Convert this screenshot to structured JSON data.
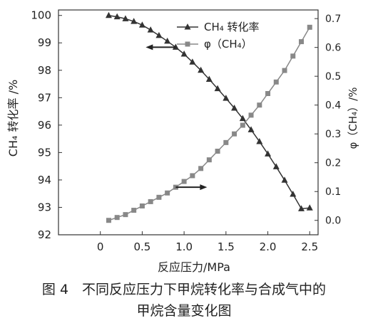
{
  "chart_data": {
    "type": "line",
    "x": [
      0.1,
      0.2,
      0.3,
      0.4,
      0.5,
      0.6,
      0.7,
      0.8,
      0.9,
      1.0,
      1.1,
      1.2,
      1.3,
      1.4,
      1.5,
      1.6,
      1.7,
      1.8,
      1.9,
      2.0,
      2.1,
      2.2,
      2.3,
      2.4,
      2.5
    ],
    "series": [
      {
        "name": "CH₄ 转化率",
        "axis": "left",
        "marker": "triangle",
        "color": "#333333",
        "values": [
          100.0,
          99.95,
          99.88,
          99.78,
          99.65,
          99.47,
          99.27,
          99.06,
          98.84,
          98.59,
          98.3,
          98.0,
          97.67,
          97.33,
          96.98,
          96.62,
          96.24,
          95.83,
          95.4,
          94.95,
          94.48,
          93.99,
          93.48,
          92.95,
          92.98
        ]
      },
      {
        "name": "φ（CH₄）",
        "axis": "right",
        "marker": "square",
        "color": "#888888",
        "values": [
          0.0,
          0.01,
          0.02,
          0.035,
          0.05,
          0.065,
          0.08,
          0.095,
          0.115,
          0.135,
          0.155,
          0.18,
          0.21,
          0.24,
          0.27,
          0.3,
          0.33,
          0.365,
          0.4,
          0.44,
          0.48,
          0.52,
          0.57,
          0.62,
          0.67
        ]
      }
    ],
    "x_axis": {
      "label": "反应压力/MPa",
      "ticks": [
        "0",
        "0.5",
        "1.0",
        "1.5",
        "2.0",
        "2.5"
      ],
      "range": [
        -0.5,
        2.6
      ]
    },
    "y_left": {
      "label": "CH₄ 转化率 /%",
      "ticks": [
        "92",
        "93",
        "94",
        "95",
        "96",
        "97",
        "98",
        "99",
        "100"
      ],
      "range": [
        92,
        100.2
      ]
    },
    "y_right": {
      "label": "φ（CH₄）/%",
      "ticks": [
        "0.0",
        "0.1",
        "0.2",
        "0.3",
        "0.4",
        "0.5",
        "0.6",
        "0.7"
      ],
      "range": [
        -0.05,
        0.73
      ]
    },
    "grid": false,
    "legend": "top-center",
    "annotations": [
      {
        "type": "arrow",
        "direction": "left",
        "series": "CH₄ 转化率",
        "at_x": 0.9
      },
      {
        "type": "arrow",
        "direction": "right",
        "series": "φ（CH₄）",
        "at_x": 0.9
      }
    ]
  },
  "caption": {
    "line1": "图 4　不同反应压力下甲烷转化率与合成气中的",
    "line2": "甲烷含量变化图"
  }
}
